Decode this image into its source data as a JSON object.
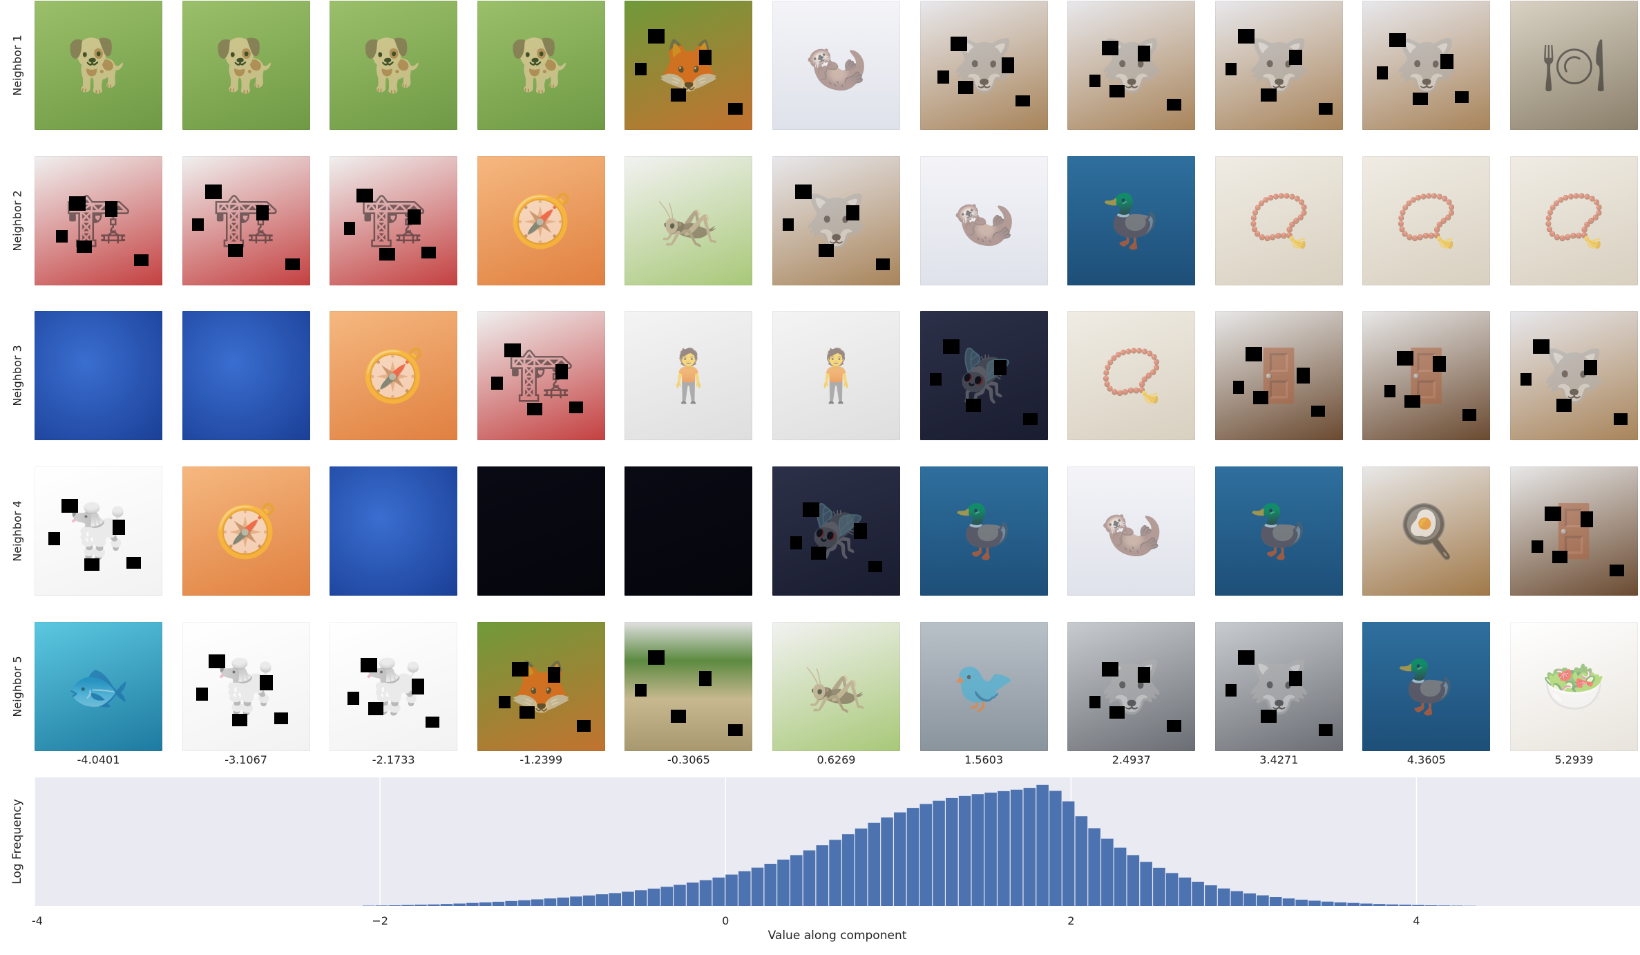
{
  "grid": {
    "rows": [
      "Neighbor 1",
      "Neighbor 2",
      "Neighbor 3",
      "Neighbor 4",
      "Neighbor 5"
    ],
    "column_values": [
      "-4.0401",
      "-3.1067",
      "-2.1733",
      "-1.2399",
      "-0.3065",
      "0.6269",
      "1.5603",
      "2.4937",
      "3.4271",
      "4.3605",
      "5.2939"
    ],
    "cells": [
      [
        "dog",
        "dog",
        "dog",
        "dog",
        "foxes",
        "weasel",
        "wolf",
        "wolf",
        "wolf",
        "wolf",
        "tableware"
      ],
      [
        "forklift",
        "forklift",
        "forklift",
        "compass-box",
        "grasshopper",
        "wolf",
        "weasel",
        "duck",
        "necklace",
        "necklace",
        "necklace"
      ],
      [
        "blue-texture",
        "blue-texture",
        "compass-box",
        "forklift",
        "person-dog-stroller",
        "person-dog-stroller",
        "dragonfly",
        "necklace",
        "room-door",
        "room-door",
        "wolf"
      ],
      [
        "poodle",
        "compass-box",
        "blue-texture",
        "dark",
        "dark",
        "dragonfly",
        "duck",
        "weasel",
        "duck",
        "stove",
        "room-door"
      ],
      [
        "underwater",
        "poodle",
        "poodle",
        "foxes",
        "field",
        "grasshopper",
        "shorebird",
        "husky",
        "husky",
        "duck",
        "food-plate"
      ]
    ],
    "occluded": [
      [
        false,
        false,
        false,
        false,
        true,
        false,
        true,
        true,
        true,
        true,
        false
      ],
      [
        true,
        true,
        true,
        false,
        false,
        true,
        false,
        false,
        false,
        false,
        false
      ],
      [
        false,
        false,
        false,
        true,
        false,
        false,
        true,
        false,
        true,
        true,
        true
      ],
      [
        true,
        false,
        false,
        false,
        false,
        true,
        false,
        false,
        false,
        false,
        true
      ],
      [
        false,
        true,
        true,
        true,
        true,
        false,
        false,
        true,
        true,
        false,
        false
      ]
    ]
  },
  "chart_data": {
    "type": "bar",
    "title": "",
    "xlabel": "Value along component",
    "ylabel": "Log Frequency",
    "xlim": [
      -4.0,
      5.2939
    ],
    "xticks": [
      -4,
      -2,
      0,
      2,
      4
    ],
    "xtick_labels": [
      "-4",
      "−2",
      "0",
      "2",
      "4"
    ],
    "grid": true,
    "bin_width": 0.075,
    "bins_start": -2.1,
    "log_frequency": [
      0.02,
      0.03,
      0.04,
      0.06,
      0.08,
      0.1,
      0.13,
      0.16,
      0.2,
      0.24,
      0.28,
      0.33,
      0.38,
      0.44,
      0.5,
      0.56,
      0.63,
      0.7,
      0.78,
      0.86,
      0.95,
      1.05,
      1.16,
      1.28,
      1.41,
      1.56,
      1.72,
      1.9,
      2.1,
      2.32,
      2.56,
      2.82,
      3.1,
      3.4,
      3.72,
      4.06,
      4.42,
      4.8,
      5.18,
      5.56,
      5.92,
      6.26,
      6.56,
      6.82,
      7.04,
      7.22,
      7.36,
      7.48,
      7.58,
      7.68,
      7.78,
      7.9,
      8.1,
      7.7,
      7.0,
      6.0,
      5.2,
      4.5,
      3.9,
      3.4,
      2.95,
      2.55,
      2.2,
      1.9,
      1.62,
      1.38,
      1.17,
      0.99,
      0.84,
      0.71,
      0.6,
      0.5,
      0.42,
      0.35,
      0.29,
      0.24,
      0.2,
      0.16,
      0.13,
      0.1,
      0.08,
      0.06,
      0.04,
      0.03,
      0.02,
      0.01
    ],
    "ymax": 8.6
  },
  "colors": {
    "bar": "#4c72b0",
    "plot_bg": "#eaeaf2",
    "grid_line": "#ffffff"
  }
}
